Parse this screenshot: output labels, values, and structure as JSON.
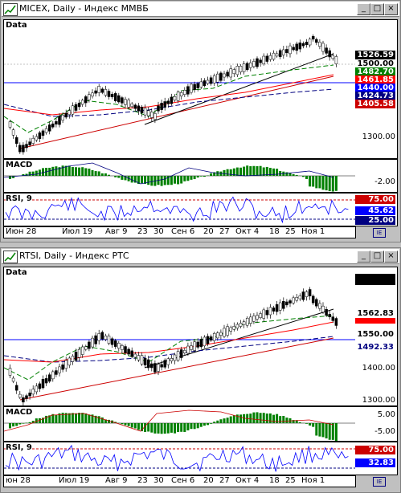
{
  "windows": [
    {
      "title": "MICEX, Daily - Индекс ММВБ",
      "price_pane_label": "Data",
      "macd_label": "MACD",
      "rsi_label": "RSI, 9",
      "price_ticks": [
        "1526.59",
        "1500.00",
        "1482.70",
        "1461.85",
        "1440.00",
        "1424.73",
        "1405.58",
        "1300.00"
      ],
      "price_tags": [
        {
          "text": "1526.59",
          "bg": "#000000",
          "fg": "#ffffff"
        },
        {
          "text": "1500.00",
          "bg": "#ffffff",
          "fg": "#000000"
        },
        {
          "text": "1482.70",
          "bg": "#008000",
          "fg": "#ffffff"
        },
        {
          "text": "1461.85",
          "bg": "#ff0000",
          "fg": "#ffffff"
        },
        {
          "text": "1440.00",
          "bg": "#0000ff",
          "fg": "#ffffff"
        },
        {
          "text": "1424.73",
          "bg": "#000080",
          "fg": "#ffffff"
        },
        {
          "text": "1405.58",
          "bg": "#cc0000",
          "fg": "#ffffff"
        }
      ],
      "macd_ticks": [
        "-2.00"
      ],
      "rsi_tags": [
        {
          "text": "75.00",
          "bg": "#cc0000",
          "fg": "#ffffff"
        },
        {
          "text": "45.62",
          "bg": "#0000ff",
          "fg": "#ffffff"
        },
        {
          "text": "25.00",
          "bg": "#000080",
          "fg": "#ffffff"
        }
      ],
      "dates": [
        "Июн 28",
        "Июл 19",
        "Авг 9",
        "23",
        "30",
        "Сен 6",
        "20",
        "27",
        "Окт 4",
        "18",
        "25",
        "Ноя 1"
      ]
    },
    {
      "title": "RTSI, Daily - Индекс РТС",
      "price_pane_label": "Data",
      "macd_label": "MACD",
      "rsi_label": "RSI, 9",
      "price_ticks": [
        "1562.83",
        "1550.00",
        "1492.33",
        "1400.00",
        "1300.00"
      ],
      "price_tags": [
        {
          "text": "1562.83",
          "bg": "#000000",
          "fg": "#ffffff"
        },
        {
          "text": "1550.00",
          "bg": "#0000ff",
          "fg": "#ffffff"
        },
        {
          "text": "1492.33",
          "bg": "#000080",
          "fg": "#ffffff"
        }
      ],
      "macd_ticks": [
        "5.00",
        "-5.00"
      ],
      "rsi_tags": [
        {
          "text": "75.00",
          "bg": "#cc0000",
          "fg": "#ffffff"
        },
        {
          "text": "32.83",
          "bg": "#0000ff",
          "fg": "#ffffff"
        }
      ],
      "dates": [
        "юн 28",
        "Июл 19",
        "Авг 9",
        "23",
        "30",
        "Сен 6",
        "20",
        "27",
        "Окт 4",
        "18",
        "25",
        "Ноя 1"
      ]
    }
  ],
  "window_buttons": {
    "minimize": "_",
    "maximize": "□",
    "close": "×"
  },
  "icons": {
    "chart_window": "chart-window-icon",
    "corner": "corner-icon"
  },
  "colors": {
    "candle_up": "#ffffff",
    "candle_down": "#000000",
    "ma_fast": "#008000",
    "ma_mid": "#ff0000",
    "ma_slow": "#000080",
    "macd_hist": "#008000",
    "rsi_line": "#0000ff"
  }
}
